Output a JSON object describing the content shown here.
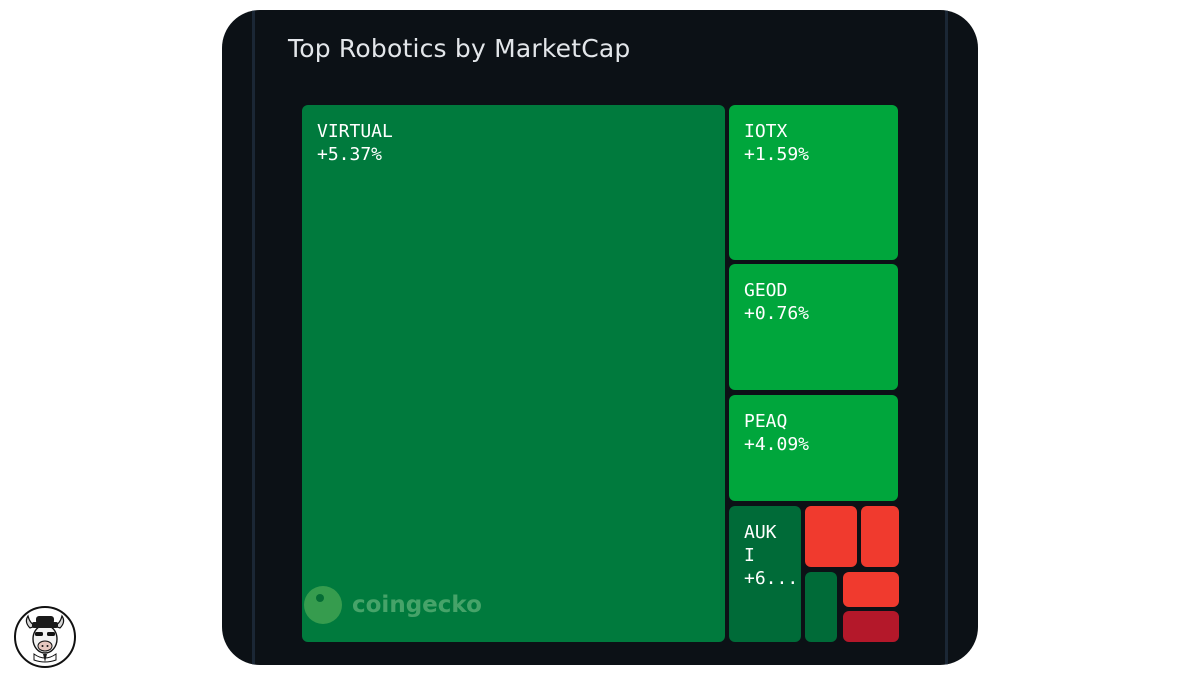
{
  "title": "Top Robotics by MarketCap",
  "watermark": {
    "text": "coingecko",
    "icon": "coingecko-logo-icon"
  },
  "avatar": {
    "icon": "bull-mascot-icon"
  },
  "colors": {
    "background": "#0c1116",
    "positive_strong": "#007a3d",
    "positive_bright": "#00a63c",
    "positive_dark": "#006b38",
    "negative_bright": "#f03a2e",
    "negative_dark": "#b4182a"
  },
  "chart_data": {
    "type": "treemap",
    "title": "Top Robotics by MarketCap",
    "items": [
      {
        "symbol": "VIRTUAL",
        "change_label": "+5.37%",
        "change_pct": 5.37,
        "color": "#007a3d"
      },
      {
        "symbol": "IOTX",
        "change_label": "+1.59%",
        "change_pct": 1.59,
        "color": "#00a63c"
      },
      {
        "symbol": "GEOD",
        "change_label": "+0.76%",
        "change_pct": 0.76,
        "color": "#00a63c"
      },
      {
        "symbol": "PEAQ",
        "change_label": "+4.09%",
        "change_pct": 4.09,
        "color": "#00a63c"
      },
      {
        "symbol": "AUKI",
        "display_symbol": "AUK\nI",
        "change_label": "+6...",
        "color": "#006b38"
      },
      {
        "symbol": "",
        "change_label": "",
        "color": "#f03a2e"
      },
      {
        "symbol": "",
        "change_label": "",
        "color": "#f03a2e"
      },
      {
        "symbol": "",
        "change_label": "",
        "color": "#006b38"
      },
      {
        "symbol": "",
        "change_label": "",
        "color": "#f03a2e"
      },
      {
        "symbol": "",
        "change_label": "",
        "color": "#b4182a"
      }
    ]
  }
}
